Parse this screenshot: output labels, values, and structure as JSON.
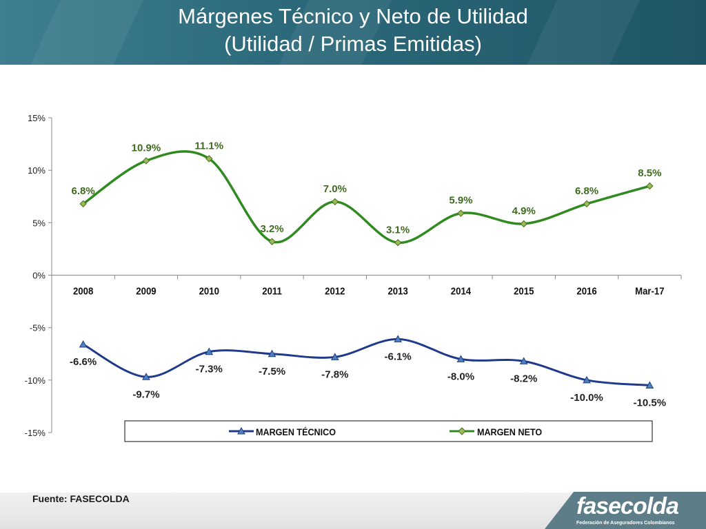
{
  "header": {
    "title_line1": "Márgenes Técnico y Neto de Utilidad",
    "title_line2": "(Utilidad / Primas Emitidas)"
  },
  "colors": {
    "tecnico": "#1f3a8a",
    "neto": "#2f8a1f",
    "neto_label": "#3d6b1f"
  },
  "chart_data": {
    "type": "line",
    "categories": [
      "2008",
      "2009",
      "2010",
      "2011",
      "2012",
      "2013",
      "2014",
      "2015",
      "2016",
      "Mar-17"
    ],
    "series": [
      {
        "name": "MARGEN TÉCNICO",
        "values": [
          -6.6,
          -9.7,
          -7.3,
          -7.5,
          -7.8,
          -6.1,
          -8.0,
          -8.2,
          -10.0,
          -10.5
        ],
        "labels": [
          "-6.6%",
          "-9.7%",
          "-7.3%",
          "-7.5%",
          "-7.8%",
          "-6.1%",
          "-8.0%",
          "-8.2%",
          "-10.0%",
          "-10.5%"
        ],
        "marker": "triangle"
      },
      {
        "name": "MARGEN NETO",
        "values": [
          6.8,
          10.9,
          11.1,
          3.2,
          7.0,
          3.1,
          5.9,
          4.9,
          6.8,
          8.5
        ],
        "labels": [
          "6.8%",
          "10.9%",
          "11.1%",
          "3.2%",
          "7.0%",
          "3.1%",
          "5.9%",
          "4.9%",
          "6.8%",
          "8.5%"
        ],
        "marker": "diamond"
      }
    ],
    "yticks": [
      15,
      10,
      5,
      0,
      -5,
      -10,
      -15
    ],
    "ytick_labels": [
      "15%",
      "10%",
      "5%",
      "0%",
      "-5%",
      "-10%",
      "-15%"
    ],
    "ylim": [
      -15,
      15
    ],
    "legend": "bottom",
    "smooth": true
  },
  "footer": {
    "source": "Fuente: FASECOLDA",
    "logo_text": "fasecolda",
    "logo_sub": "Federación de Aseguradores Colombianos"
  }
}
